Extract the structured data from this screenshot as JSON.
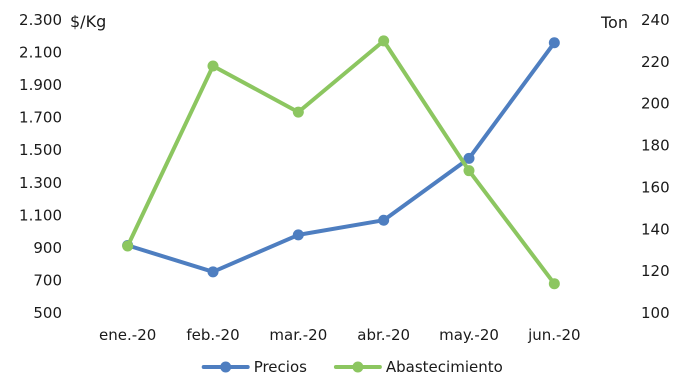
{
  "chart_data": {
    "type": "line",
    "categories": [
      "ene.-20",
      "feb.-20",
      "mar.-20",
      "abr.-20",
      "may.-20",
      "jun.-20"
    ],
    "series": [
      {
        "name": "Precios",
        "axis": "left",
        "color": "#4e7ec0",
        "values": [
          915,
          753,
          980,
          1070,
          1450,
          2160
        ]
      },
      {
        "name": "Abastecimiento",
        "axis": "right",
        "color": "#8cc660",
        "values": [
          132,
          218,
          196,
          230,
          168,
          114
        ]
      }
    ],
    "left_axis": {
      "unit_label": "$/Kg",
      "range": [
        500,
        2300
      ],
      "ticks": [
        "500",
        "700",
        "900",
        "1.100",
        "1.300",
        "1.500",
        "1.700",
        "1.900",
        "2.100",
        "2.300"
      ]
    },
    "right_axis": {
      "unit_label": "Ton",
      "range": [
        100,
        240
      ],
      "ticks": [
        "100",
        "120",
        "140",
        "160",
        "180",
        "200",
        "220",
        "240"
      ]
    },
    "grid": false,
    "legend": "bottom"
  }
}
